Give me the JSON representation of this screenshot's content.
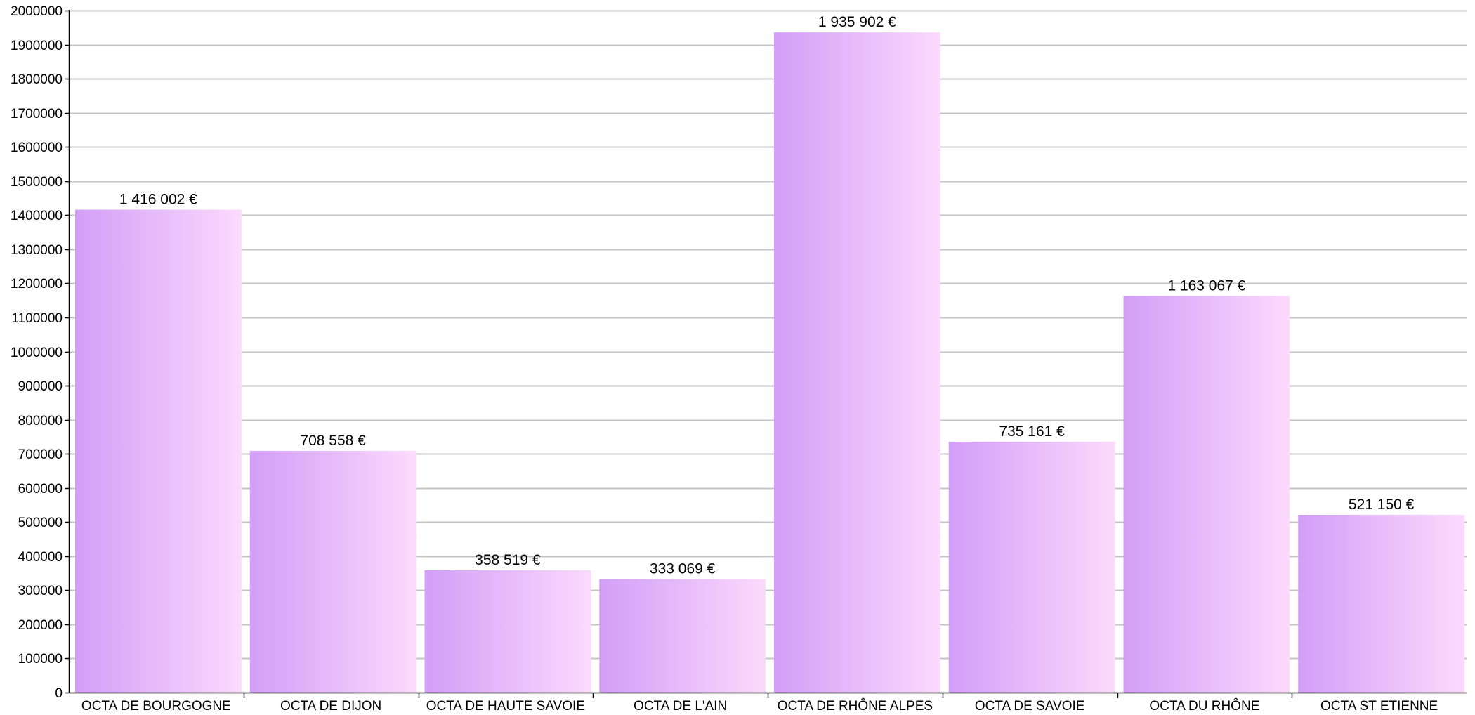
{
  "chart_data": {
    "type": "bar",
    "categories": [
      "OCTA DE BOURGOGNE",
      "OCTA DE DIJON",
      "OCTA DE HAUTE SAVOIE",
      "OCTA DE L'AIN",
      "OCTA DE RHÔNE ALPES",
      "OCTA DE SAVOIE",
      "OCTA DU RHÔNE",
      "OCTA ST ETIENNE"
    ],
    "values": [
      1416002,
      708558,
      358519,
      333069,
      1935902,
      735161,
      1163067,
      521150
    ],
    "data_labels": [
      "1 416 002 €",
      "708 558 €",
      "358 519 €",
      "333 069 €",
      "1 935 902 €",
      "735 161 €",
      "1 163 067 €",
      "521 150 €"
    ],
    "ylim": [
      0,
      2000000
    ],
    "yticks": [
      0,
      100000,
      200000,
      300000,
      400000,
      500000,
      600000,
      700000,
      800000,
      900000,
      1000000,
      1100000,
      1200000,
      1300000,
      1400000,
      1500000,
      1600000,
      1700000,
      1800000,
      1900000,
      2000000
    ],
    "ytick_labels": [
      "0",
      "100000",
      "200000",
      "300000",
      "400000",
      "500000",
      "600000",
      "700000",
      "800000",
      "900000",
      "1000000",
      "1100000",
      "1200000",
      "1300000",
      "1400000",
      "1500000",
      "1600000",
      "1700000",
      "1800000",
      "1900000",
      "2000000"
    ],
    "grid": true,
    "legend": false,
    "colors": {
      "bar_left": "#d29ef7",
      "bar_right": "#fcdafd",
      "grid": "#c4c4c4",
      "axis": "#000000"
    }
  }
}
